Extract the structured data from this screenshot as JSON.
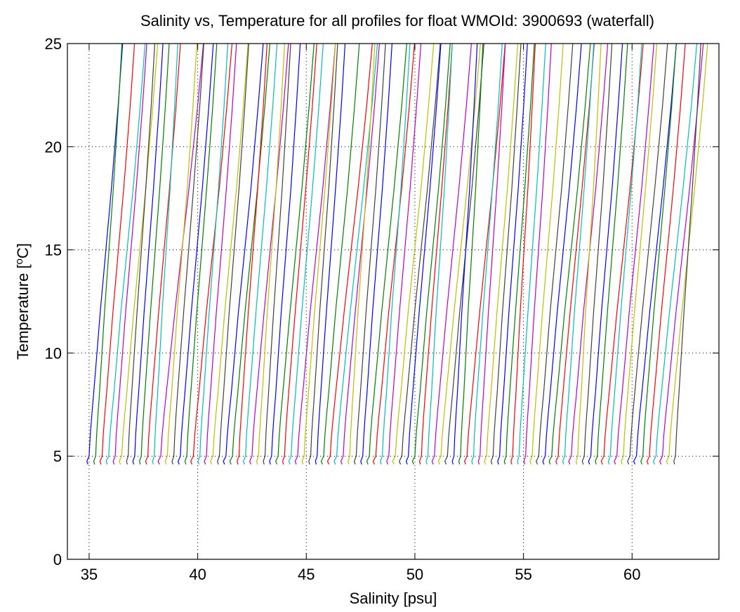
{
  "chart_data": {
    "type": "line",
    "title": "Salinity vs, Temperature for all profiles for float WMOId: 3900693 (waterfall)",
    "xlabel": "Salinity [psu]",
    "ylabel_main": "Temperature [",
    "ylabel_sup": "o",
    "ylabel_end": "C]",
    "xlim": [
      34,
      64
    ],
    "ylim": [
      0,
      25
    ],
    "xticks": [
      35,
      40,
      45,
      50,
      55,
      60
    ],
    "yticks": [
      0,
      5,
      10,
      15,
      20,
      25
    ],
    "grid": "dotted",
    "legend": "none",
    "waterfall": {
      "profile_count": 91,
      "first_profile_base_salinity": 35.0,
      "salinity_offset_per_profile": 0.3,
      "profile_shape": {
        "temperature": [
          4.6,
          4.75,
          5.0,
          6.0,
          7.0,
          8.0,
          10.0,
          12.0,
          15.0,
          18.0,
          20.0,
          22.0,
          25.0
        ],
        "salinity_delta": [
          -0.05,
          -0.1,
          0.0,
          0.05,
          0.12,
          0.2,
          0.35,
          0.5,
          0.75,
          1.0,
          1.15,
          1.3,
          1.5
        ]
      }
    },
    "series_colors": [
      "#0000ff",
      "#008000",
      "#ff0000",
      "#00bfbf",
      "#bf00bf",
      "#bfbf00",
      "#404040"
    ]
  }
}
